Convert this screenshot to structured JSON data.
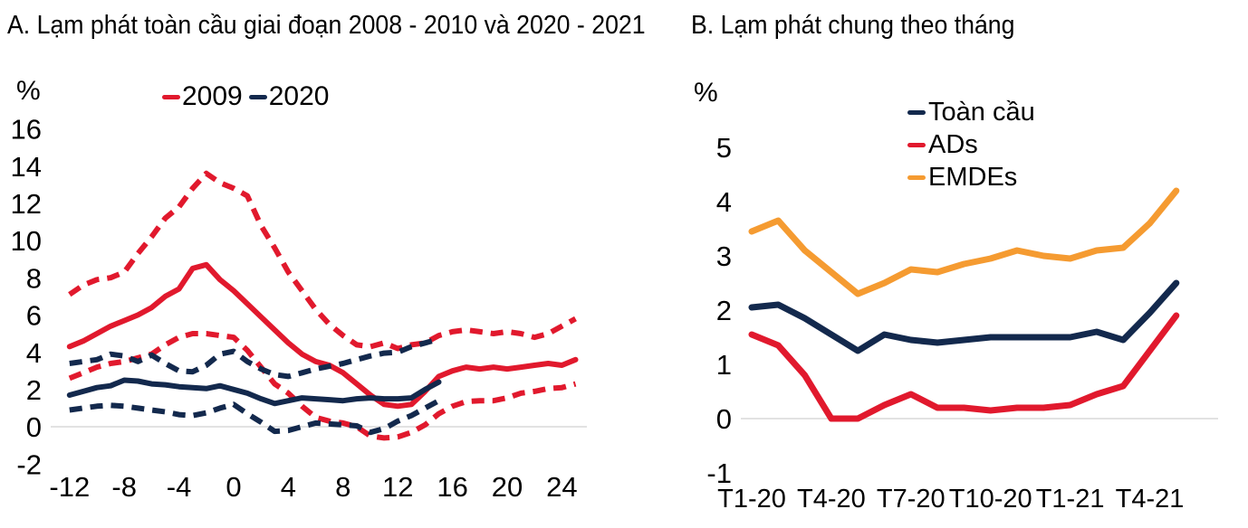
{
  "page": {
    "background": "#ffffff",
    "text_color": "#000000",
    "zero_gridline_color": "#d9d9d9"
  },
  "chart_data": [
    {
      "id": "A",
      "type": "line",
      "title": "A. Lạm phát toàn cầu giai đoạn 2008 - 2010 và 2020 - 2021",
      "ylabel": "%",
      "xlabel": "",
      "x_unit": "months relative to year start (monthly data)",
      "x_start": -12,
      "xlim": [
        -12,
        26
      ],
      "ylim": [
        -2,
        16
      ],
      "y_ticks": [
        16,
        14,
        12,
        10,
        8,
        6,
        4,
        2,
        0,
        -2
      ],
      "x_ticks": [
        {
          "label": "-12",
          "pos": -12
        },
        {
          "label": "-8",
          "pos": -8
        },
        {
          "label": "-4",
          "pos": -4
        },
        {
          "label": "0",
          "pos": 0
        },
        {
          "label": "4",
          "pos": 4
        },
        {
          "label": "8",
          "pos": 8
        },
        {
          "label": "12",
          "pos": 12
        },
        {
          "label": "16",
          "pos": 16
        },
        {
          "label": "20",
          "pos": 20
        },
        {
          "label": "24",
          "pos": 24
        }
      ],
      "grid": "zero-line-only",
      "legend_position": "top-center",
      "legend": [
        {
          "label": "2009",
          "color": "#e1192d"
        },
        {
          "label": "2020",
          "color": "#13294d"
        }
      ],
      "series": [
        {
          "name": "2009-upper-band",
          "color": "#e1192d",
          "dash": true,
          "values": [
            7.1,
            7.6,
            7.9,
            8.0,
            8.3,
            9.3,
            10.2,
            11.2,
            11.8,
            12.8,
            13.6,
            13.1,
            12.8,
            12.4,
            10.8,
            9.6,
            8.3,
            7.3,
            6.3,
            5.5,
            4.9,
            4.4,
            4.3,
            4.5,
            4.2,
            4.4,
            4.5,
            4.9,
            5.1,
            5.2,
            5.1,
            5.0,
            5.1,
            5.0,
            4.8,
            5.0,
            5.4,
            5.8
          ]
        },
        {
          "name": "2009-lower-band",
          "color": "#e1192d",
          "dash": true,
          "values": [
            2.6,
            2.9,
            3.2,
            3.4,
            3.5,
            3.7,
            3.9,
            4.4,
            4.8,
            5.0,
            5.0,
            4.9,
            4.8,
            4.1,
            3.2,
            2.3,
            1.8,
            1.1,
            0.5,
            0.3,
            0.2,
            0.0,
            -0.5,
            -0.6,
            -0.55,
            -0.3,
            0.1,
            0.7,
            1.1,
            1.35,
            1.4,
            1.4,
            1.55,
            1.8,
            1.9,
            2.05,
            2.1,
            2.3
          ]
        },
        {
          "name": "2009-median",
          "color": "#e1192d",
          "dash": false,
          "values": [
            4.3,
            4.6,
            5.0,
            5.4,
            5.7,
            6.0,
            6.4,
            7.0,
            7.4,
            8.5,
            8.7,
            7.9,
            7.3,
            6.6,
            5.9,
            5.2,
            4.5,
            3.9,
            3.5,
            3.3,
            2.9,
            2.3,
            1.7,
            1.2,
            1.1,
            1.2,
            1.9,
            2.7,
            3.0,
            3.2,
            3.1,
            3.2,
            3.1,
            3.2,
            3.3,
            3.4,
            3.3,
            3.6
          ]
        },
        {
          "name": "2020-upper-band",
          "color": "#13294d",
          "dash": true,
          "values": [
            3.4,
            3.5,
            3.6,
            3.9,
            3.8,
            3.5,
            3.85,
            3.4,
            3.0,
            2.95,
            3.3,
            3.9,
            4.05,
            3.5,
            3.1,
            2.8,
            2.7,
            2.9,
            3.1,
            3.25,
            3.4,
            3.6,
            3.8,
            3.95,
            4.0,
            4.3,
            4.5,
            4.7
          ]
        },
        {
          "name": "2020-lower-band",
          "color": "#13294d",
          "dash": true,
          "values": [
            0.9,
            1.0,
            1.1,
            1.15,
            1.1,
            1.0,
            0.9,
            0.8,
            0.65,
            0.6,
            0.75,
            1.0,
            1.2,
            0.7,
            0.25,
            -0.25,
            -0.2,
            0.0,
            0.2,
            0.15,
            0.1,
            0.05,
            -0.3,
            -0.1,
            0.3,
            0.6,
            1.0,
            1.4
          ]
        },
        {
          "name": "2020-median",
          "color": "#13294d",
          "dash": false,
          "values": [
            1.7,
            1.9,
            2.1,
            2.2,
            2.5,
            2.45,
            2.3,
            2.25,
            2.15,
            2.1,
            2.05,
            2.2,
            2.0,
            1.8,
            1.5,
            1.25,
            1.4,
            1.55,
            1.5,
            1.45,
            1.4,
            1.5,
            1.55,
            1.5,
            1.5,
            1.55,
            2.0,
            2.4
          ]
        }
      ]
    },
    {
      "id": "B",
      "type": "line",
      "title": "B. Lạm phát chung theo tháng",
      "ylabel": "%",
      "xlabel": "",
      "x_unit": "monthly, T1-20 through T5-21",
      "x_start": 0,
      "xlim": [
        0,
        16
      ],
      "ylim": [
        -1,
        5
      ],
      "y_ticks": [
        5,
        4,
        3,
        2,
        1,
        0,
        -1
      ],
      "x_ticks": [
        {
          "label": "T1-20",
          "pos": 0
        },
        {
          "label": "T4-20",
          "pos": 3
        },
        {
          "label": "T7-20",
          "pos": 6
        },
        {
          "label": "T10-20",
          "pos": 9
        },
        {
          "label": "T1-21",
          "pos": 12
        },
        {
          "label": "T4-21",
          "pos": 15
        }
      ],
      "grid": "zero-line-only",
      "legend_position": "top-right",
      "legend": [
        {
          "label": "Toàn cầu",
          "color": "#13294d"
        },
        {
          "label": "ADs",
          "color": "#e1192d"
        },
        {
          "label": "EMDEs",
          "color": "#f59b31"
        }
      ],
      "series": [
        {
          "name": "toan-cau-global",
          "color": "#13294d",
          "dash": false,
          "values": [
            2.05,
            2.1,
            1.85,
            1.55,
            1.25,
            1.55,
            1.45,
            1.4,
            1.45,
            1.5,
            1.5,
            1.5,
            1.5,
            1.6,
            1.45,
            1.95,
            2.5
          ]
        },
        {
          "name": "ads-advanced-economies",
          "color": "#e1192d",
          "dash": false,
          "values": [
            1.55,
            1.35,
            0.8,
            0.0,
            0.0,
            0.25,
            0.45,
            0.2,
            0.2,
            0.15,
            0.2,
            0.2,
            0.25,
            0.45,
            0.6,
            1.25,
            1.9
          ]
        },
        {
          "name": "emdes-emerging-economies",
          "color": "#f59b31",
          "dash": false,
          "values": [
            3.45,
            3.65,
            3.1,
            2.7,
            2.3,
            2.5,
            2.75,
            2.7,
            2.85,
            2.95,
            3.1,
            3.0,
            2.95,
            3.1,
            3.15,
            3.6,
            4.2
          ]
        }
      ]
    }
  ]
}
